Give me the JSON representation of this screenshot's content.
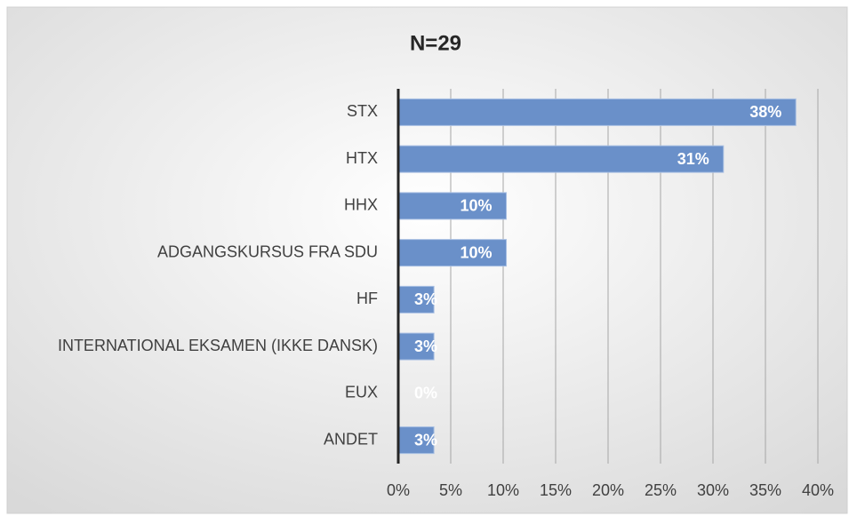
{
  "chart_data": {
    "type": "barh",
    "title": "N=29",
    "categories": [
      "STX",
      "HTX",
      "HHX",
      "ADGANGSKURSUS FRA SDU",
      "HF",
      "INTERNATIONAL EKSAMEN (IKKE DANSK)",
      "EUX",
      "ANDET"
    ],
    "values": [
      37.9,
      31.0,
      10.3,
      10.3,
      3.4,
      3.4,
      0,
      3.4
    ],
    "value_labels": [
      "38%",
      "31%",
      "10%",
      "10%",
      "3%",
      "3%",
      "0%",
      "3%"
    ],
    "color": "#6a90c9",
    "xlim": [
      0,
      40
    ],
    "xticks": [
      {
        "value": 0,
        "label": "0%"
      },
      {
        "value": 5,
        "label": "5%"
      },
      {
        "value": 10,
        "label": "10%"
      },
      {
        "value": 15,
        "label": "15%"
      },
      {
        "value": 20,
        "label": "20%"
      },
      {
        "value": 25,
        "label": "25%"
      },
      {
        "value": 30,
        "label": "30%"
      },
      {
        "value": 35,
        "label": "35%"
      },
      {
        "value": 40,
        "label": "40%"
      }
    ],
    "grid": true
  }
}
